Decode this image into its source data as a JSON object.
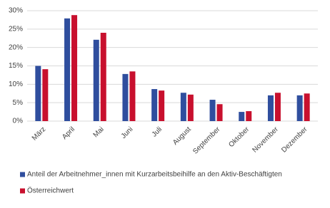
{
  "chart_data": {
    "type": "bar",
    "categories": [
      "März",
      "April",
      "Mai",
      "Juni",
      "Juli",
      "August",
      "September",
      "Oktober",
      "November",
      "Dezember"
    ],
    "series": [
      {
        "name": "Anteil der Arbeitnehmer_innen mit Kurzarbeitsbeihilfe an den Aktiv-Beschäftigten",
        "color": "#2f4e9e",
        "values": [
          15.0,
          27.9,
          22.1,
          12.8,
          8.7,
          7.7,
          5.8,
          2.5,
          7.0,
          7.0
        ]
      },
      {
        "name": "Österreichwert",
        "color": "#c8102e",
        "values": [
          14.1,
          28.8,
          24.0,
          13.5,
          8.3,
          7.2,
          4.6,
          2.7,
          7.7,
          7.5
        ]
      }
    ],
    "ylim": [
      0,
      30
    ],
    "yticks": [
      {
        "value": 0,
        "label": "0%"
      },
      {
        "value": 5,
        "label": "5%"
      },
      {
        "value": 10,
        "label": "10%"
      },
      {
        "value": 15,
        "label": "15%"
      },
      {
        "value": 20,
        "label": "20%"
      },
      {
        "value": 25,
        "label": "25%"
      },
      {
        "value": 30,
        "label": "30%"
      }
    ],
    "grid": true
  }
}
